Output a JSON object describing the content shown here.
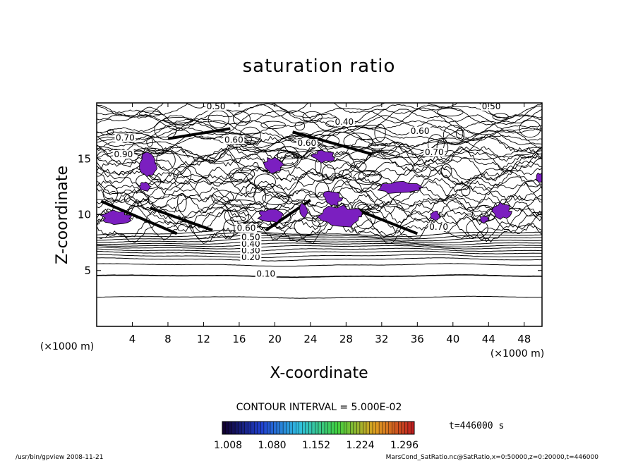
{
  "chart_data": {
    "type": "contour",
    "title": "saturation ratio",
    "xlabel": "X-coordinate",
    "ylabel": "Z-coordinate",
    "x_unit": "(×1000 m)",
    "y_unit": "(×1000 m)",
    "xlim": [
      0,
      50
    ],
    "ylim": [
      0,
      20
    ],
    "x_ticks": [
      4,
      8,
      12,
      16,
      20,
      24,
      28,
      32,
      36,
      40,
      44,
      48
    ],
    "y_ticks": [
      5,
      10,
      15
    ],
    "contour_interval_label": "CONTOUR INTERVAL = 5.000E-02",
    "contour_labels": [
      {
        "text": "0.10",
        "x": 19.0,
        "z": 4.5
      },
      {
        "text": "0.20",
        "x": 17.3,
        "z": 6.0
      },
      {
        "text": "0.30",
        "x": 17.3,
        "z": 6.6
      },
      {
        "text": "0.40",
        "x": 17.3,
        "z": 7.2
      },
      {
        "text": "0.50",
        "x": 17.3,
        "z": 7.8
      },
      {
        "text": "0.60",
        "x": 16.8,
        "z": 8.6
      },
      {
        "text": "0.50",
        "x": 13.4,
        "z": 19.5
      },
      {
        "text": "0.50",
        "x": 44.3,
        "z": 19.5
      },
      {
        "text": "0.40",
        "x": 27.8,
        "z": 18.1
      },
      {
        "text": "0.60",
        "x": 36.3,
        "z": 17.3
      },
      {
        "text": "0.70",
        "x": 3.2,
        "z": 16.7
      },
      {
        "text": "0.90",
        "x": 3.0,
        "z": 15.2
      },
      {
        "text": "0.60",
        "x": 15.4,
        "z": 16.5
      },
      {
        "text": "0.60",
        "x": 23.6,
        "z": 16.2
      },
      {
        "text": "0.70",
        "x": 37.9,
        "z": 15.4
      },
      {
        "text": "0.70",
        "x": 38.4,
        "z": 8.7
      }
    ],
    "supersaturated_regions_x_ranges": [
      [
        1.5,
        5.5
      ],
      [
        4.5,
        6.5
      ],
      [
        4.8,
        6.0
      ],
      [
        18.5,
        21.5
      ],
      [
        18.0,
        22.0
      ],
      [
        22.5,
        23.5
      ],
      [
        25.0,
        30.0
      ],
      [
        24.5,
        29.5
      ],
      [
        31.5,
        36.0
      ],
      [
        44.5,
        46.5
      ],
      [
        49.0,
        50.0
      ],
      [
        48.0,
        49.5
      ],
      [
        36.5,
        38.0
      ],
      [
        42.0,
        44.0
      ]
    ],
    "colorbar": {
      "ticks": [
        "1.008",
        "1.080",
        "1.152",
        "1.224",
        "1.296"
      ],
      "colors": [
        "#100030",
        "#2040d0",
        "#30c0e0",
        "#40d040",
        "#e0a020",
        "#c02020"
      ]
    },
    "time_label": "t=446000 s"
  },
  "footer": {
    "left": "/usr/bin/gpview   2008-11-21",
    "right": "MarsCond_SatRatio.nc@SatRatio,x=0:50000,z=0:20000,t=446000"
  },
  "colors": {
    "fill": "#7b1fc0",
    "fill_dark": "#3a2fd0",
    "line": "#000000"
  }
}
